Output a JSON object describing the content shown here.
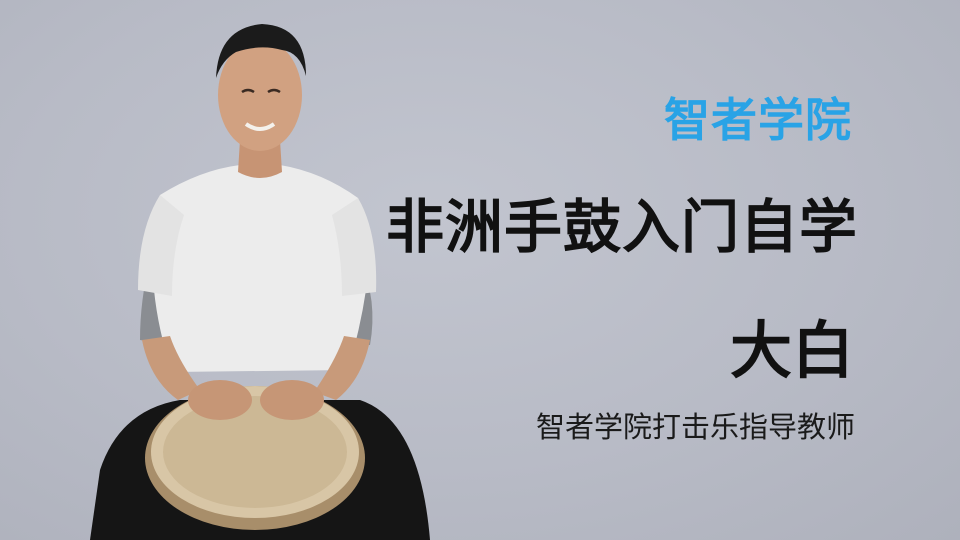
{
  "brand": {
    "name": "智者学院",
    "color": "#29a3e6"
  },
  "course": {
    "title": "非洲手鼓入门自学"
  },
  "teacher": {
    "name": "大白",
    "role": "智者学院打击乐指导教师"
  },
  "photo": {
    "subject": "instructor-with-djembe"
  }
}
